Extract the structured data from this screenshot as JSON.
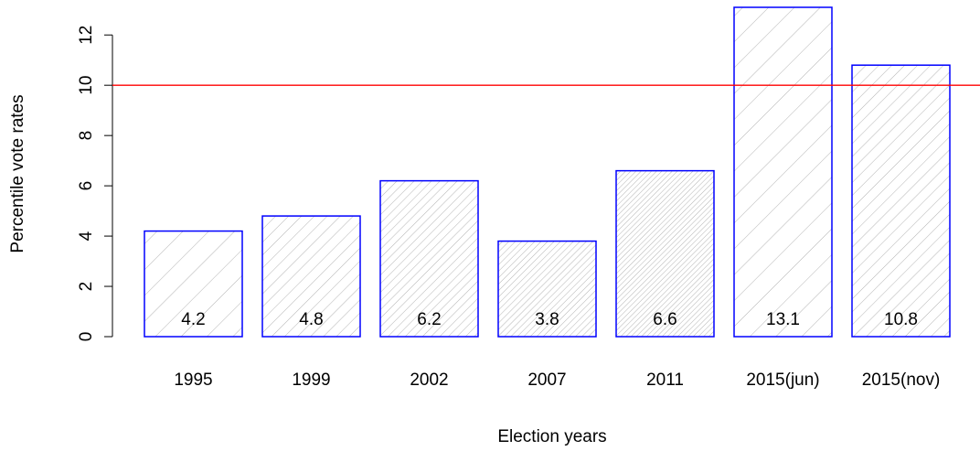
{
  "chart_data": {
    "type": "bar",
    "xlabel": "Election years",
    "ylabel": "Percentile vote rates",
    "categories": [
      "1995",
      "1999",
      "2002",
      "2007",
      "2011",
      "2015(jun)",
      "2015(nov)"
    ],
    "values": [
      4.2,
      4.8,
      6.2,
      3.8,
      6.6,
      13.1,
      10.8
    ],
    "color": "#0000ff",
    "hatch_color": "#b4b4b4",
    "density": [
      10,
      20,
      30,
      40,
      50,
      10,
      20
    ],
    "ylim": [
      0,
      13.1
    ],
    "yticks": [
      0,
      2,
      4,
      6,
      8,
      10,
      12
    ],
    "reference_line": {
      "value": 10,
      "color": "#ff0000"
    }
  }
}
